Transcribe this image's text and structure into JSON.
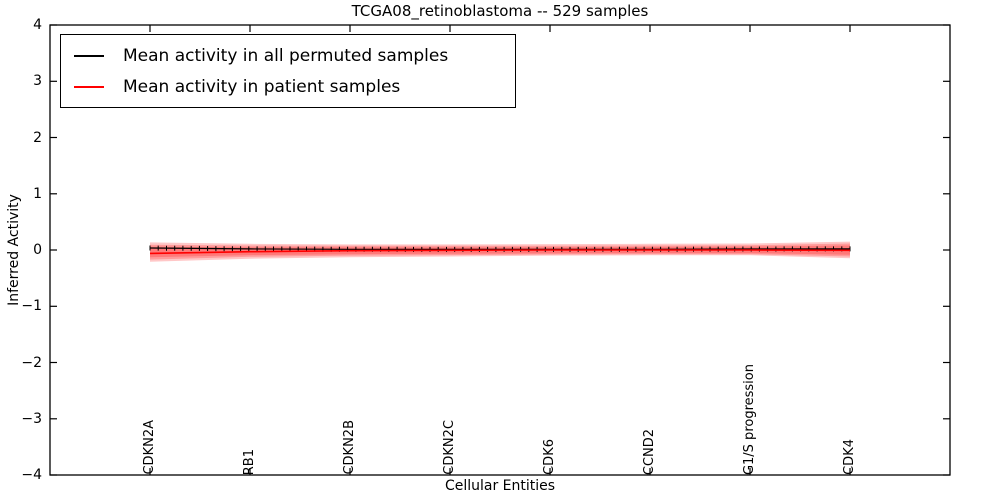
{
  "chart_data": {
    "type": "line",
    "title": "TCGA08_retinoblastoma -- 529 samples",
    "xlabel": "Cellular Entities",
    "ylabel": "Inferred Activity",
    "ylim": [
      -4,
      4
    ],
    "x_domain": [
      0,
      9
    ],
    "grid": false,
    "frame_color": "#000000",
    "yticks": [
      4,
      3,
      2,
      1,
      0,
      -1,
      -2,
      -3,
      -4
    ],
    "ytick_labels": [
      "4",
      "3",
      "2",
      "1",
      "0",
      "−1",
      "−2",
      "−3",
      "−4"
    ],
    "categories": [
      "CDKN2A",
      "RB1",
      "CDKN2B",
      "CDKN2C",
      "CDK6",
      "CCND2",
      "G1/S progression",
      "CDK4"
    ],
    "category_x": [
      1,
      2,
      3,
      4,
      5,
      6,
      7,
      8
    ],
    "series": [
      {
        "name": "Mean activity in all permuted samples",
        "color": "#000000",
        "line_width": 1.2,
        "marker": "vertical-tick",
        "marker_count": 86,
        "x": [
          1,
          2,
          3,
          4,
          5,
          6,
          7,
          8
        ],
        "y": [
          0.035,
          0.02,
          0.013,
          0.01,
          0.01,
          0.013,
          0.018,
          0.02
        ]
      },
      {
        "name": "Mean activity in patient samples",
        "color": "#ff0000",
        "line_width": 1.6,
        "marker": "none",
        "x": [
          1,
          2,
          3,
          4,
          5,
          6,
          7,
          8
        ],
        "y": [
          -0.06,
          -0.03,
          -0.012,
          -0.005,
          0.0,
          0.0,
          0.0,
          -0.005
        ]
      }
    ],
    "bands": [
      {
        "name": "patient-band-outer",
        "color": "#ff0000",
        "opacity": 0.22,
        "x": [
          1,
          2,
          3,
          4,
          5,
          6,
          7,
          8
        ],
        "upper": [
          0.135,
          0.11,
          0.1,
          0.1,
          0.105,
          0.11,
          0.115,
          0.15
        ],
        "lower": [
          -0.21,
          -0.155,
          -0.13,
          -0.115,
          -0.1,
          -0.095,
          -0.095,
          -0.145
        ]
      },
      {
        "name": "patient-band-mid",
        "color": "#ff0000",
        "opacity": 0.22,
        "x": [
          1,
          2,
          3,
          4,
          5,
          6,
          7,
          8
        ],
        "upper": [
          0.095,
          0.08,
          0.075,
          0.075,
          0.075,
          0.08,
          0.085,
          0.115
        ],
        "lower": [
          -0.17,
          -0.12,
          -0.1,
          -0.09,
          -0.08,
          -0.075,
          -0.075,
          -0.115
        ]
      },
      {
        "name": "patient-band-inner",
        "color": "#ff0000",
        "opacity": 0.22,
        "x": [
          1,
          2,
          3,
          4,
          5,
          6,
          7,
          8
        ],
        "upper": [
          0.06,
          0.05,
          0.05,
          0.05,
          0.05,
          0.055,
          0.06,
          0.08
        ],
        "lower": [
          -0.13,
          -0.09,
          -0.075,
          -0.065,
          -0.06,
          -0.055,
          -0.055,
          -0.085
        ]
      }
    ],
    "legend": {
      "position": "upper-left",
      "entries": [
        {
          "label": "Mean activity in all permuted samples",
          "color": "#000000"
        },
        {
          "label": "Mean activity in patient samples",
          "color": "#ff0000"
        }
      ]
    }
  }
}
